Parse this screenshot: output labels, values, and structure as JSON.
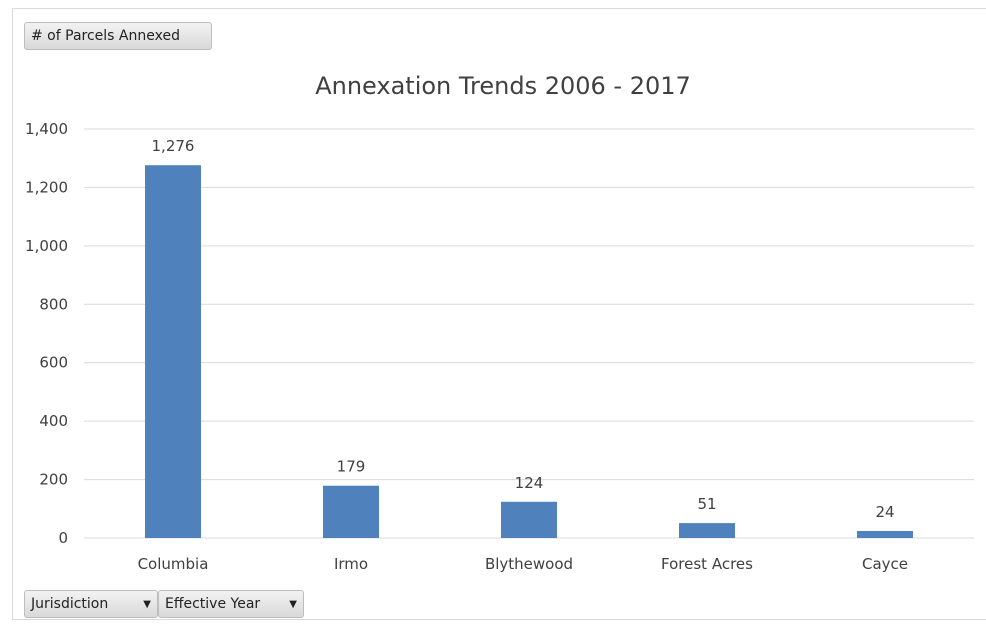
{
  "controls": {
    "value_field": "# of Parcels Annexed",
    "row_fields": [
      {
        "label": "Jurisdiction",
        "icon": "dropdown-arrow-icon"
      },
      {
        "label": "Effective Year",
        "icon": "dropdown-arrow-icon"
      }
    ]
  },
  "colors": {
    "bar": "#4f81bd",
    "grid": "#d9d9d9",
    "text": "#404040"
  },
  "chart_data": {
    "type": "bar",
    "title": "Annexation Trends 2006 - 2017",
    "xlabel": "",
    "ylabel": "",
    "categories": [
      "Columbia",
      "Irmo",
      "Blythewood",
      "Forest Acres",
      "Cayce"
    ],
    "values": [
      1276,
      179,
      124,
      51,
      24
    ],
    "data_labels": [
      "1,276",
      "179",
      "124",
      "51",
      "24"
    ],
    "ylim": [
      0,
      1400
    ],
    "yticks": [
      0,
      200,
      400,
      600,
      800,
      1000,
      1200,
      1400
    ],
    "ytick_labels": [
      "0",
      "200",
      "400",
      "600",
      "800",
      "1,000",
      "1,200",
      "1,400"
    ],
    "grid": true,
    "legend": "none"
  }
}
